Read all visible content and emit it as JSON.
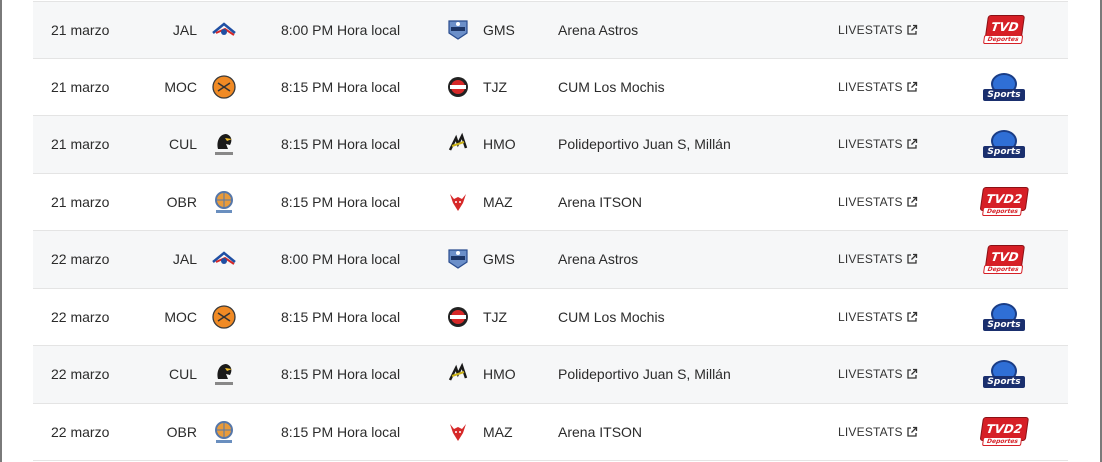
{
  "colors": {
    "row_alt": "#f6f7f8",
    "tvd_red": "#d61f26",
    "sports_blue": "#1e3a8a"
  },
  "rows": [
    {
      "date": "21 marzo",
      "home": "JAL",
      "home_icon": "jal-team-logo-icon",
      "time": "8:00 PM Hora local",
      "away_icon": "gms-team-logo-icon",
      "away": "GMS",
      "venue": "Arena Astros",
      "live": "LIVESTATS",
      "tv": "tvd"
    },
    {
      "date": "21 marzo",
      "home": "MOC",
      "home_icon": "moc-team-logo-icon",
      "time": "8:15 PM Hora local",
      "away_icon": "tjz-team-logo-icon",
      "away": "TJZ",
      "venue": "CUM Los Mochis",
      "live": "LIVESTATS",
      "tv": "sports"
    },
    {
      "date": "21 marzo",
      "home": "CUL",
      "home_icon": "cul-team-logo-icon",
      "time": "8:15 PM Hora local",
      "away_icon": "hmo-team-logo-icon",
      "away": "HMO",
      "venue": "Polideportivo Juan S, Millán",
      "live": "LIVESTATS",
      "tv": "sports"
    },
    {
      "date": "21 marzo",
      "home": "OBR",
      "home_icon": "obr-team-logo-icon",
      "time": "8:15 PM Hora local",
      "away_icon": "maz-team-logo-icon",
      "away": "MAZ",
      "venue": "Arena ITSON",
      "live": "LIVESTATS",
      "tv": "tvd2"
    },
    {
      "date": "22 marzo",
      "home": "JAL",
      "home_icon": "jal-team-logo-icon",
      "time": "8:00 PM Hora local",
      "away_icon": "gms-team-logo-icon",
      "away": "GMS",
      "venue": "Arena Astros",
      "live": "LIVESTATS",
      "tv": "tvd"
    },
    {
      "date": "22 marzo",
      "home": "MOC",
      "home_icon": "moc-team-logo-icon",
      "time": "8:15 PM Hora local",
      "away_icon": "tjz-team-logo-icon",
      "away": "TJZ",
      "venue": "CUM Los Mochis",
      "live": "LIVESTATS",
      "tv": "sports"
    },
    {
      "date": "22 marzo",
      "home": "CUL",
      "home_icon": "cul-team-logo-icon",
      "time": "8:15 PM Hora local",
      "away_icon": "hmo-team-logo-icon",
      "away": "HMO",
      "venue": "Polideportivo Juan S, Millán",
      "live": "LIVESTATS",
      "tv": "sports"
    },
    {
      "date": "22 marzo",
      "home": "OBR",
      "home_icon": "obr-team-logo-icon",
      "time": "8:15 PM Hora local",
      "away_icon": "maz-team-logo-icon",
      "away": "MAZ",
      "venue": "Arena ITSON",
      "live": "LIVESTATS",
      "tv": "tvd2"
    }
  ],
  "tv_logos": {
    "tvd": {
      "main": "TVD",
      "sub": "Deportes"
    },
    "tvd2": {
      "main": "TVD2",
      "sub": "Deportes"
    },
    "sports": {
      "main": "Sports"
    }
  }
}
